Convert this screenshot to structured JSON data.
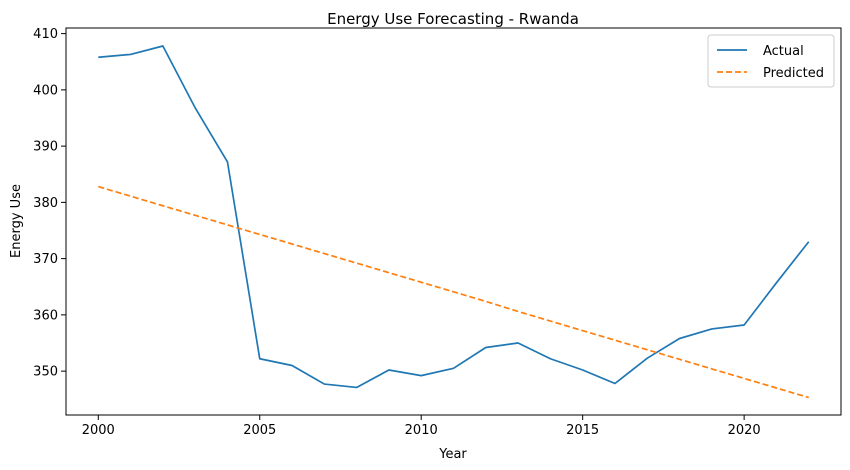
{
  "chart_data": {
    "type": "line",
    "title": "Energy Use Forecasting - Rwanda",
    "xlabel": "Year",
    "ylabel": "Energy Use",
    "xlim": [
      1999,
      2023
    ],
    "ylim": [
      342.2,
      411
    ],
    "xticks": [
      2000,
      2005,
      2010,
      2015,
      2020
    ],
    "yticks": [
      350,
      360,
      370,
      380,
      390,
      400,
      410
    ],
    "grid": false,
    "legend_position": "top-right",
    "x": [
      2000,
      2001,
      2002,
      2003,
      2004,
      2005,
      2006,
      2007,
      2008,
      2009,
      2010,
      2011,
      2012,
      2013,
      2014,
      2015,
      2016,
      2017,
      2018,
      2019,
      2020,
      2021,
      2022
    ],
    "series": [
      {
        "name": "Actual",
        "color": "#1f77b4",
        "style": "solid",
        "values": [
          405.8,
          406.3,
          407.8,
          396.8,
          387.2,
          352.2,
          351.0,
          347.7,
          347.1,
          350.2,
          349.2,
          350.5,
          354.2,
          355.0,
          352.2,
          350.2,
          347.8,
          352.3,
          355.8,
          357.5,
          358.2,
          365.7,
          373.0
        ]
      },
      {
        "name": "Predicted",
        "color": "#ff7f0e",
        "style": "dashed",
        "values": [
          382.8,
          381.1,
          379.4,
          377.7,
          376.0,
          374.3,
          372.6,
          370.9,
          369.2,
          367.5,
          365.8,
          364.1,
          362.4,
          360.6,
          358.9,
          357.2,
          355.5,
          353.8,
          352.1,
          350.4,
          348.7,
          347.0,
          345.3
        ]
      }
    ]
  }
}
